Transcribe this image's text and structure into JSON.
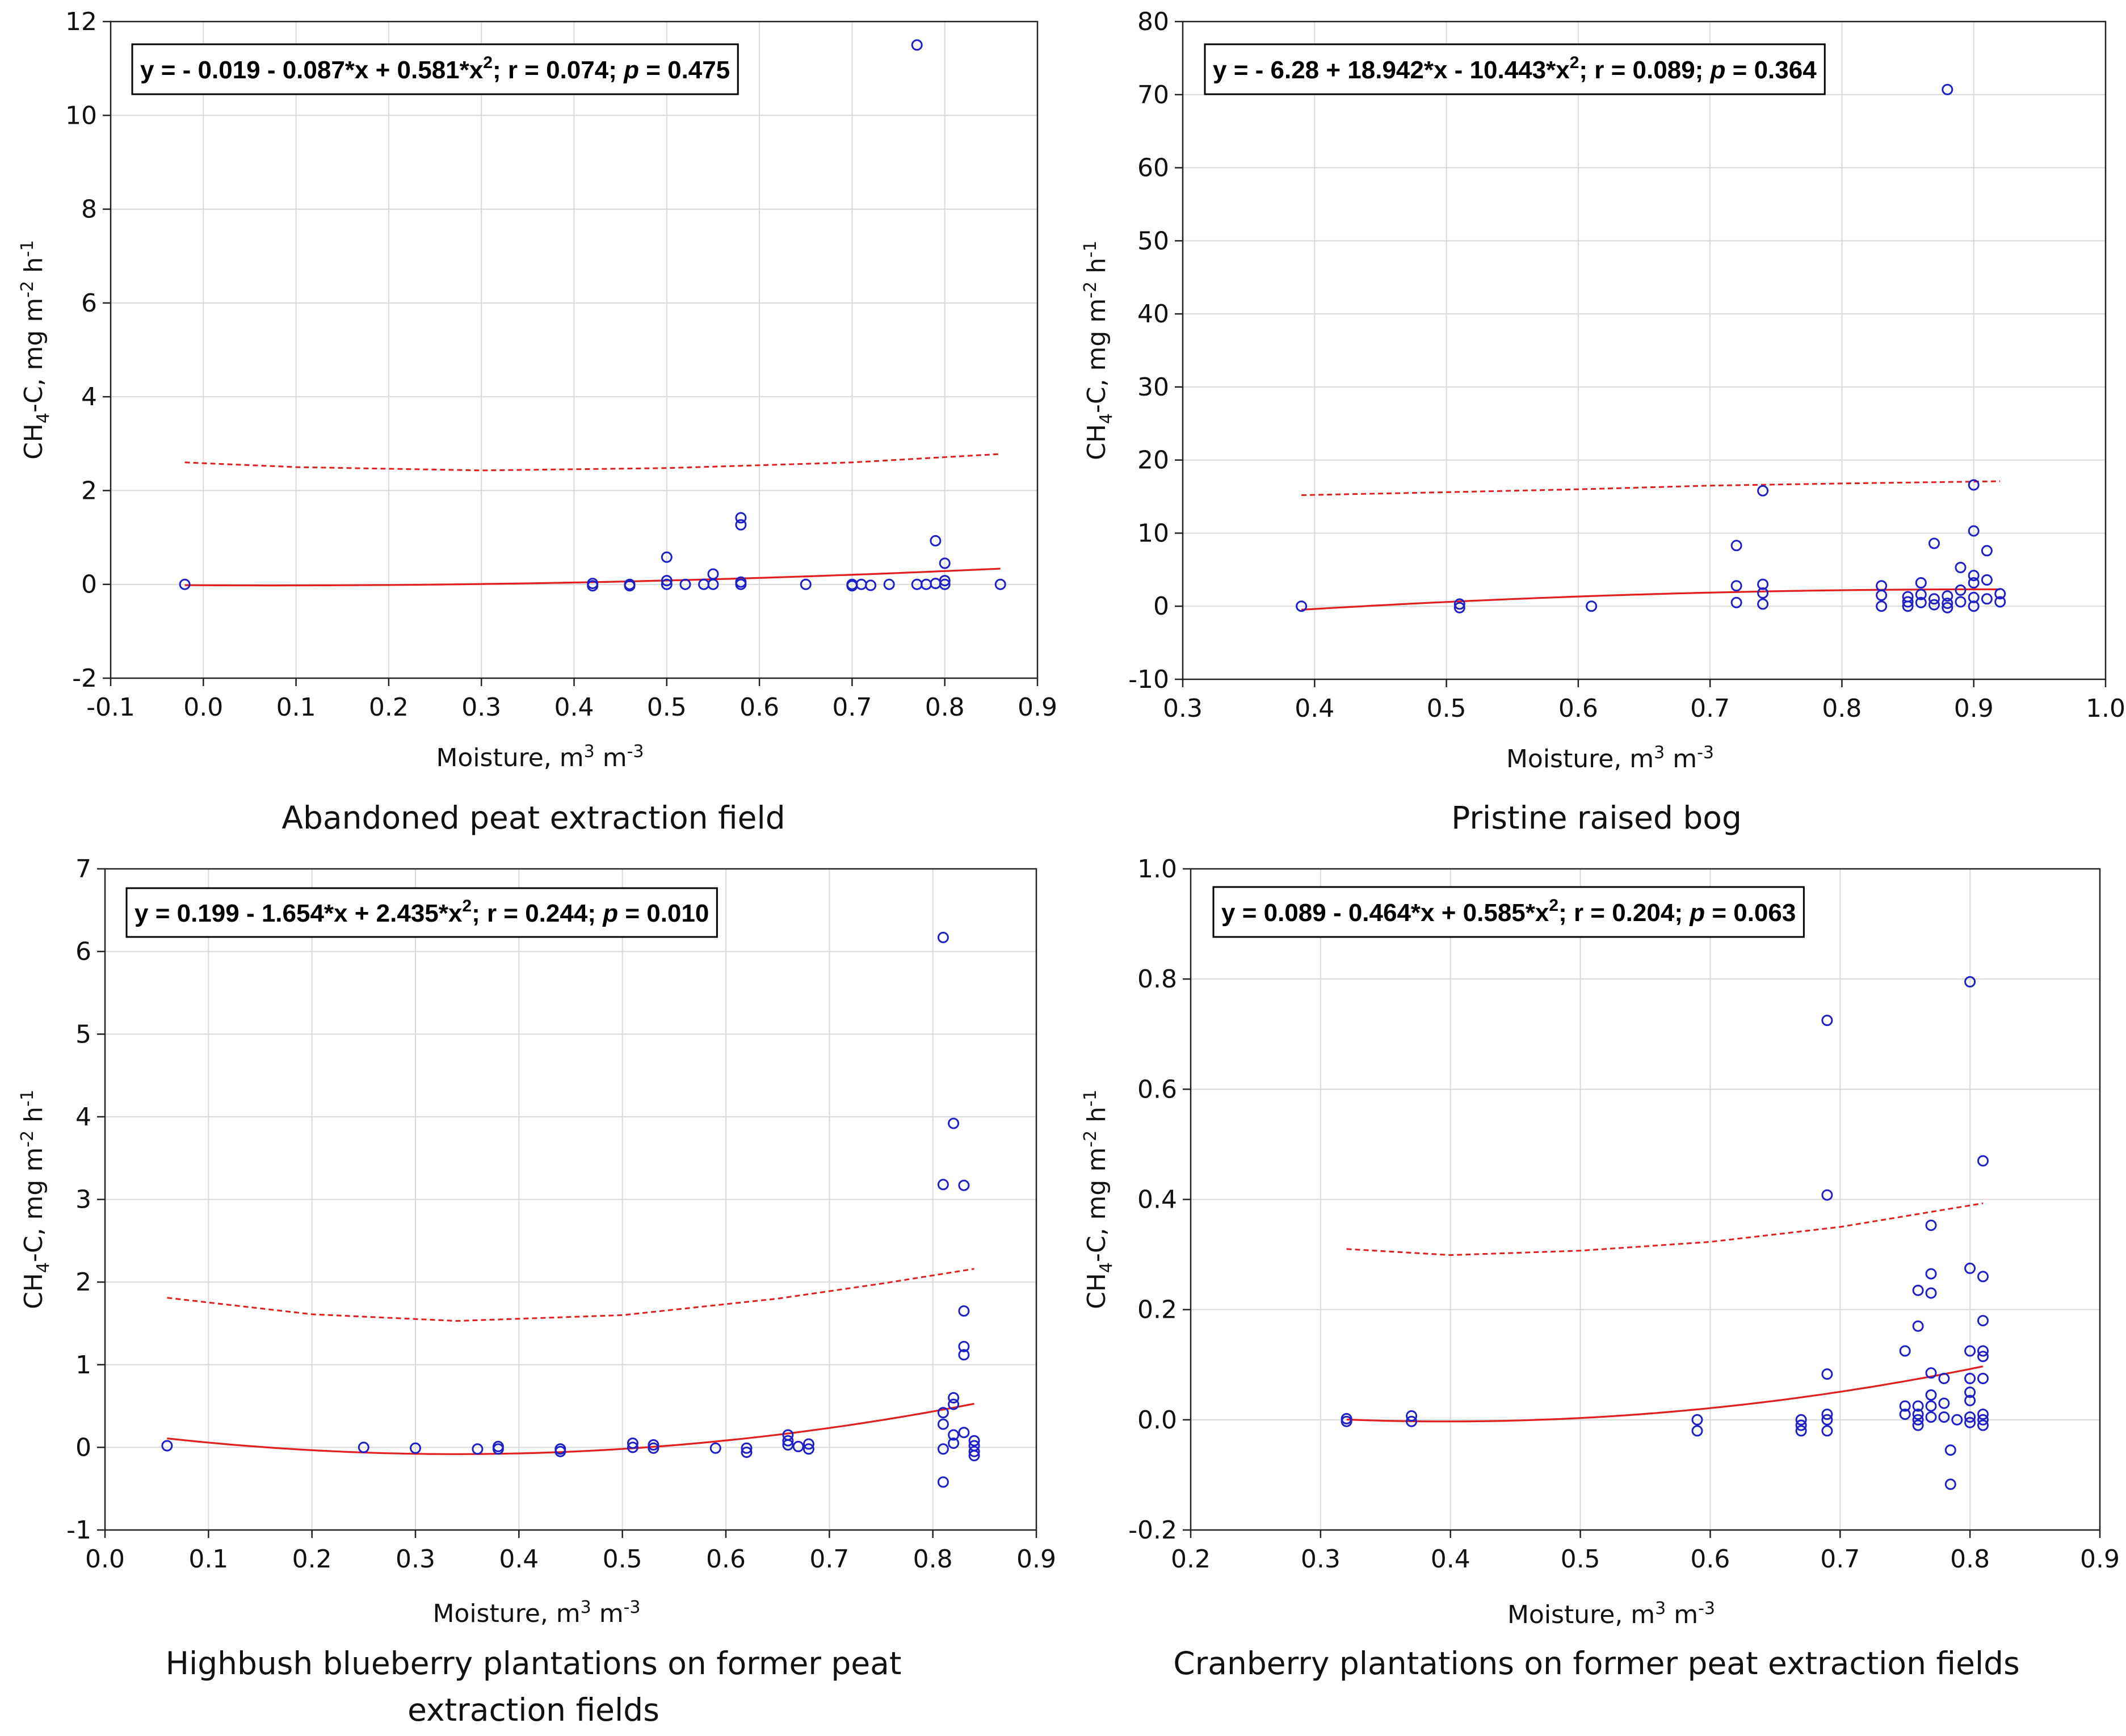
{
  "chart_data": [
    {
      "type": "scatter",
      "title": "Abandoned peat extraction field",
      "xlabel_main": "Moisture, m",
      "xlabel_sup1": "3",
      "xlabel_mid": " m",
      "xlabel_sup2": "-3",
      "ylabel_sub_pre": "CH",
      "ylabel_sub": "4",
      "ylabel_main": "-C, mg m",
      "ylabel_sup1": "-2",
      "ylabel_mid": " h",
      "ylabel_sup2": "-1",
      "equation_pre": "y = - 0.019 - 0.087*x + 0.581*x",
      "equation_sup": "2",
      "equation_mid": "; r = 0.074; ",
      "equation_p": "p",
      "equation_post": " = 0.475",
      "xlim": [
        -0.1,
        0.9
      ],
      "ylim": [
        -2,
        12
      ],
      "xticks": [
        -0.1,
        0.0,
        0.1,
        0.2,
        0.3,
        0.4,
        0.5,
        0.6,
        0.7,
        0.8,
        0.9
      ],
      "xtick_labels": [
        "-0.1",
        "0.0",
        "0.1",
        "0.2",
        "0.3",
        "0.4",
        "0.5",
        "0.6",
        "0.7",
        "0.8",
        "0.9"
      ],
      "yticks": [
        -2,
        0,
        2,
        4,
        6,
        8,
        10,
        12
      ],
      "ytick_labels": [
        "-2",
        "0",
        "2",
        "4",
        "6",
        "8",
        "10",
        "12"
      ],
      "fit": {
        "a": -0.019,
        "b": -0.087,
        "c": 0.581,
        "x_range": [
          -0.02,
          0.86
        ]
      },
      "upper_band": {
        "points": [
          [
            -0.02,
            2.6
          ],
          [
            0.1,
            2.5
          ],
          [
            0.3,
            2.43
          ],
          [
            0.5,
            2.48
          ],
          [
            0.7,
            2.6
          ],
          [
            0.86,
            2.78
          ]
        ]
      },
      "points": [
        [
          -0.02,
          0.0
        ],
        [
          0.42,
          0.02
        ],
        [
          0.42,
          -0.03
        ],
        [
          0.46,
          0.0
        ],
        [
          0.46,
          -0.03
        ],
        [
          0.5,
          0.58
        ],
        [
          0.5,
          0.08
        ],
        [
          0.5,
          0.0
        ],
        [
          0.52,
          0.0
        ],
        [
          0.54,
          0.0
        ],
        [
          0.55,
          0.22
        ],
        [
          0.55,
          0.0
        ],
        [
          0.58,
          1.42
        ],
        [
          0.58,
          1.27
        ],
        [
          0.58,
          0.05
        ],
        [
          0.58,
          0.0
        ],
        [
          0.65,
          0.0
        ],
        [
          0.7,
          0.0
        ],
        [
          0.7,
          -0.03
        ],
        [
          0.71,
          0.0
        ],
        [
          0.72,
          -0.02
        ],
        [
          0.74,
          0.0
        ],
        [
          0.77,
          11.5
        ],
        [
          0.77,
          0.0
        ],
        [
          0.78,
          0.0
        ],
        [
          0.79,
          0.93
        ],
        [
          0.79,
          0.02
        ],
        [
          0.8,
          0.45
        ],
        [
          0.8,
          0.08
        ],
        [
          0.8,
          0.0
        ],
        [
          0.86,
          0.0
        ]
      ]
    },
    {
      "type": "scatter",
      "title": "Pristine raised bog",
      "xlabel_main": "Moisture, m",
      "xlabel_sup1": "3",
      "xlabel_mid": " m",
      "xlabel_sup2": "-3",
      "ylabel_sub_pre": "CH",
      "ylabel_sub": "4",
      "ylabel_main": "-C, mg m",
      "ylabel_sup1": "-2",
      "ylabel_mid": " h",
      "ylabel_sup2": "-1",
      "equation_pre": "y = - 6.28 + 18.942*x - 10.443*x",
      "equation_sup": "2",
      "equation_mid": "; r = 0.089; ",
      "equation_p": "p",
      "equation_post": " = 0.364",
      "xlim": [
        0.3,
        1.0
      ],
      "ylim": [
        -10,
        80
      ],
      "xticks": [
        0.3,
        0.4,
        0.5,
        0.6,
        0.7,
        0.8,
        0.9,
        1.0
      ],
      "xtick_labels": [
        "0.3",
        "0.4",
        "0.5",
        "0.6",
        "0.7",
        "0.8",
        "0.9",
        "1.0"
      ],
      "yticks": [
        -10,
        0,
        10,
        20,
        30,
        40,
        50,
        60,
        70,
        80
      ],
      "ytick_labels": [
        "-10",
        "0",
        "10",
        "20",
        "30",
        "40",
        "50",
        "60",
        "70",
        "80"
      ],
      "fit": {
        "a": -6.28,
        "b": 18.942,
        "c": -10.443,
        "x_range": [
          0.39,
          0.92
        ]
      },
      "upper_band": {
        "points": [
          [
            0.39,
            15.2
          ],
          [
            0.5,
            15.6
          ],
          [
            0.6,
            16.0
          ],
          [
            0.7,
            16.5
          ],
          [
            0.8,
            16.8
          ],
          [
            0.92,
            17.1
          ]
        ]
      },
      "points": [
        [
          0.39,
          0.0
        ],
        [
          0.51,
          0.3
        ],
        [
          0.51,
          -0.2
        ],
        [
          0.61,
          0.0
        ],
        [
          0.72,
          8.3
        ],
        [
          0.72,
          2.8
        ],
        [
          0.72,
          0.5
        ],
        [
          0.74,
          15.8
        ],
        [
          0.74,
          3.0
        ],
        [
          0.74,
          1.8
        ],
        [
          0.74,
          0.3
        ],
        [
          0.83,
          2.8
        ],
        [
          0.83,
          1.5
        ],
        [
          0.83,
          0.0
        ],
        [
          0.85,
          1.3
        ],
        [
          0.85,
          0.6
        ],
        [
          0.85,
          0.0
        ],
        [
          0.86,
          3.2
        ],
        [
          0.86,
          1.6
        ],
        [
          0.86,
          0.5
        ],
        [
          0.87,
          8.6
        ],
        [
          0.87,
          1.0
        ],
        [
          0.87,
          0.2
        ],
        [
          0.88,
          70.7
        ],
        [
          0.88,
          1.4
        ],
        [
          0.88,
          0.4
        ],
        [
          0.88,
          -0.2
        ],
        [
          0.89,
          5.3
        ],
        [
          0.89,
          2.2
        ],
        [
          0.89,
          0.6
        ],
        [
          0.9,
          16.6
        ],
        [
          0.9,
          10.3
        ],
        [
          0.9,
          4.2
        ],
        [
          0.9,
          3.2
        ],
        [
          0.9,
          1.2
        ],
        [
          0.9,
          0.0
        ],
        [
          0.91,
          7.6
        ],
        [
          0.91,
          3.6
        ],
        [
          0.91,
          1.0
        ],
        [
          0.92,
          1.7
        ],
        [
          0.92,
          0.6
        ]
      ]
    },
    {
      "type": "scatter",
      "title": "Highbush blueberry plantations on former peat extraction fields",
      "xlabel_main": "Moisture, m",
      "xlabel_sup1": "3",
      "xlabel_mid": " m",
      "xlabel_sup2": "-3",
      "ylabel_sub_pre": "CH",
      "ylabel_sub": "4",
      "ylabel_main": "-C, mg m",
      "ylabel_sup1": "-2",
      "ylabel_mid": " h",
      "ylabel_sup2": "-1",
      "equation_pre": "y = 0.199 - 1.654*x + 2.435*x",
      "equation_sup": "2",
      "equation_mid": "; r = 0.244; ",
      "equation_p": "p",
      "equation_post": " = 0.010",
      "xlim": [
        0.0,
        0.9
      ],
      "ylim": [
        -1,
        7
      ],
      "xticks": [
        0.0,
        0.1,
        0.2,
        0.3,
        0.4,
        0.5,
        0.6,
        0.7,
        0.8,
        0.9
      ],
      "xtick_labels": [
        "0.0",
        "0.1",
        "0.2",
        "0.3",
        "0.4",
        "0.5",
        "0.6",
        "0.7",
        "0.8",
        "0.9"
      ],
      "yticks": [
        -1,
        0,
        1,
        2,
        3,
        4,
        5,
        6,
        7
      ],
      "ytick_labels": [
        "-1",
        "0",
        "1",
        "2",
        "3",
        "4",
        "5",
        "6",
        "7"
      ],
      "fit": {
        "a": 0.199,
        "b": -1.654,
        "c": 2.435,
        "x_range": [
          0.06,
          0.84
        ]
      },
      "upper_band": {
        "points": [
          [
            0.06,
            1.81
          ],
          [
            0.2,
            1.61
          ],
          [
            0.34,
            1.53
          ],
          [
            0.5,
            1.6
          ],
          [
            0.65,
            1.8
          ],
          [
            0.75,
            1.98
          ],
          [
            0.84,
            2.16
          ]
        ]
      },
      "points": [
        [
          0.06,
          0.02
        ],
        [
          0.25,
          0.0
        ],
        [
          0.3,
          -0.01
        ],
        [
          0.36,
          -0.02
        ],
        [
          0.38,
          0.01
        ],
        [
          0.38,
          -0.02
        ],
        [
          0.44,
          -0.02
        ],
        [
          0.44,
          -0.05
        ],
        [
          0.51,
          0.05
        ],
        [
          0.51,
          0.0
        ],
        [
          0.53,
          0.03
        ],
        [
          0.53,
          -0.01
        ],
        [
          0.59,
          -0.01
        ],
        [
          0.62,
          -0.01
        ],
        [
          0.62,
          -0.06
        ],
        [
          0.66,
          0.15
        ],
        [
          0.66,
          0.08
        ],
        [
          0.66,
          0.03
        ],
        [
          0.67,
          0.01
        ],
        [
          0.68,
          0.04
        ],
        [
          0.68,
          -0.02
        ],
        [
          0.81,
          6.17
        ],
        [
          0.81,
          3.18
        ],
        [
          0.81,
          0.42
        ],
        [
          0.81,
          0.28
        ],
        [
          0.81,
          -0.02
        ],
        [
          0.81,
          -0.42
        ],
        [
          0.82,
          3.92
        ],
        [
          0.82,
          0.6
        ],
        [
          0.82,
          0.52
        ],
        [
          0.82,
          0.15
        ],
        [
          0.82,
          0.05
        ],
        [
          0.83,
          3.17
        ],
        [
          0.83,
          1.65
        ],
        [
          0.83,
          1.22
        ],
        [
          0.83,
          1.12
        ],
        [
          0.83,
          0.18
        ],
        [
          0.84,
          0.08
        ],
        [
          0.84,
          0.02
        ],
        [
          0.84,
          -0.05
        ],
        [
          0.84,
          -0.1
        ]
      ]
    },
    {
      "type": "scatter",
      "title": "Cranberry plantations on former peat extraction fields",
      "xlabel_main": "Moisture, m",
      "xlabel_sup1": "3",
      "xlabel_mid": " m",
      "xlabel_sup2": "-3",
      "ylabel_sub_pre": "CH",
      "ylabel_sub": "4",
      "ylabel_main": "-C, mg m",
      "ylabel_sup1": "-2",
      "ylabel_mid": " h",
      "ylabel_sup2": "-1",
      "equation_pre": "y = 0.089 - 0.464*x + 0.585*x",
      "equation_sup": "2",
      "equation_mid": "; r = 0.204; ",
      "equation_p": "p",
      "equation_post": " = 0.063",
      "xlim": [
        0.2,
        0.9
      ],
      "ylim": [
        -0.2,
        1.0
      ],
      "xticks": [
        0.2,
        0.3,
        0.4,
        0.5,
        0.6,
        0.7,
        0.8,
        0.9
      ],
      "xtick_labels": [
        "0.2",
        "0.3",
        "0.4",
        "0.5",
        "0.6",
        "0.7",
        "0.8",
        "0.9"
      ],
      "yticks": [
        -0.2,
        0.0,
        0.2,
        0.4,
        0.6,
        0.8,
        1.0
      ],
      "ytick_labels": [
        "-0.2",
        "0.0",
        "0.2",
        "0.4",
        "0.6",
        "0.8",
        "1.0"
      ],
      "fit": {
        "a": 0.089,
        "b": -0.464,
        "c": 0.585,
        "x_range": [
          0.32,
          0.81
        ]
      },
      "upper_band": {
        "points": [
          [
            0.32,
            0.31
          ],
          [
            0.4,
            0.299
          ],
          [
            0.5,
            0.307
          ],
          [
            0.6,
            0.323
          ],
          [
            0.7,
            0.35
          ],
          [
            0.81,
            0.393
          ]
        ]
      },
      "points": [
        [
          0.32,
          0.002
        ],
        [
          0.32,
          -0.003
        ],
        [
          0.37,
          0.007
        ],
        [
          0.37,
          -0.003
        ],
        [
          0.59,
          0.0
        ],
        [
          0.59,
          -0.02
        ],
        [
          0.67,
          0.0
        ],
        [
          0.67,
          -0.01
        ],
        [
          0.67,
          -0.02
        ],
        [
          0.69,
          0.725
        ],
        [
          0.69,
          0.408
        ],
        [
          0.69,
          0.083
        ],
        [
          0.69,
          0.01
        ],
        [
          0.69,
          0.0
        ],
        [
          0.69,
          -0.02
        ],
        [
          0.75,
          0.125
        ],
        [
          0.75,
          0.025
        ],
        [
          0.75,
          0.01
        ],
        [
          0.76,
          0.235
        ],
        [
          0.76,
          0.17
        ],
        [
          0.76,
          0.025
        ],
        [
          0.76,
          0.01
        ],
        [
          0.76,
          0.0
        ],
        [
          0.76,
          -0.01
        ],
        [
          0.77,
          0.353
        ],
        [
          0.77,
          0.265
        ],
        [
          0.77,
          0.23
        ],
        [
          0.77,
          0.085
        ],
        [
          0.77,
          0.045
        ],
        [
          0.77,
          0.025
        ],
        [
          0.77,
          0.005
        ],
        [
          0.78,
          0.075
        ],
        [
          0.78,
          0.03
        ],
        [
          0.78,
          0.005
        ],
        [
          0.785,
          -0.055
        ],
        [
          0.785,
          -0.117
        ],
        [
          0.79,
          0.0
        ],
        [
          0.8,
          0.795
        ],
        [
          0.8,
          0.275
        ],
        [
          0.8,
          0.125
        ],
        [
          0.8,
          0.075
        ],
        [
          0.8,
          0.05
        ],
        [
          0.8,
          0.035
        ],
        [
          0.8,
          0.005
        ],
        [
          0.8,
          -0.005
        ],
        [
          0.81,
          0.47
        ],
        [
          0.81,
          0.26
        ],
        [
          0.81,
          0.18
        ],
        [
          0.81,
          0.125
        ],
        [
          0.81,
          0.115
        ],
        [
          0.81,
          0.075
        ],
        [
          0.81,
          0.01
        ],
        [
          0.81,
          0.0
        ],
        [
          0.81,
          -0.01
        ]
      ]
    }
  ],
  "colors": {
    "points": "#1f1fc8",
    "fit": "#e02020",
    "grid": "#d9d9d9",
    "axis": "#222222"
  }
}
